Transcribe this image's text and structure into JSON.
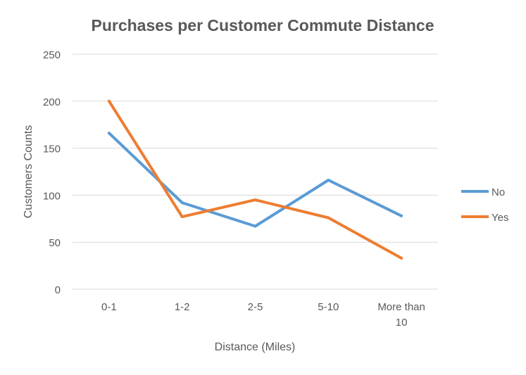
{
  "chart_data": {
    "type": "line",
    "title": "Purchases per Customer Commute Distance",
    "xlabel": "Distance (Miles)",
    "ylabel": "Customers Counts",
    "categories": [
      "0-1",
      "1-2",
      "2-5",
      "5-10",
      "More than 10"
    ],
    "category_lines": [
      [
        "0-1"
      ],
      [
        "1-2"
      ],
      [
        "2-5"
      ],
      [
        "5-10"
      ],
      [
        "More than",
        "10"
      ]
    ],
    "ylim": [
      0,
      250
    ],
    "yticks": [
      0,
      50,
      100,
      150,
      200,
      250
    ],
    "grid": true,
    "legend_position": "right",
    "series": [
      {
        "name": "No",
        "color": "#5B9BD5",
        "values": [
          166,
          92,
          67,
          116,
          78
        ]
      },
      {
        "name": "Yes",
        "color": "#ED7D31",
        "values": [
          200,
          77,
          95,
          76,
          33
        ]
      }
    ]
  }
}
